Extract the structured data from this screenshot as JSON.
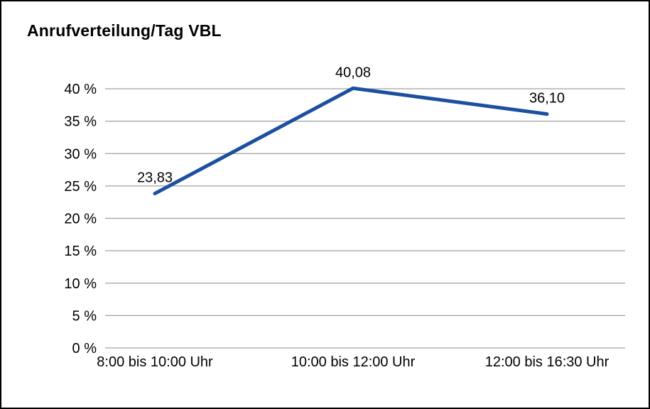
{
  "title": "Anrufverteilung/Tag VBL",
  "chart_data": {
    "type": "line",
    "title": "Anrufverteilung/Tag VBL",
    "categories": [
      "8:00 bis 10:00 Uhr",
      "10:00 bis 12:00 Uhr",
      "12:00 bis 16:30 Uhr"
    ],
    "values": [
      23.83,
      40.08,
      36.1
    ],
    "value_labels": [
      "23,83",
      "40,08",
      "36,10"
    ],
    "xlabel": "",
    "ylabel": "",
    "ylim": [
      0,
      40
    ],
    "ytick_step": 5,
    "ytick_suffix": " %",
    "ytick_labels": [
      "0 %",
      "5 %",
      "10 %",
      "15 %",
      "20 %",
      "25 %",
      "30 %",
      "35 %",
      "40 %"
    ],
    "grid": true,
    "legend_position": "none"
  },
  "colors": {
    "line": "#1b4f9f",
    "grid": "#a0a0a0",
    "axis_text": "#000000",
    "border": "#000000",
    "background": "#ffffff"
  }
}
